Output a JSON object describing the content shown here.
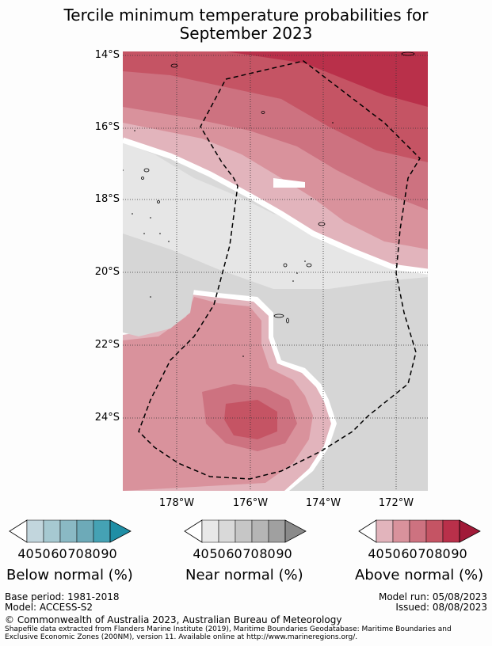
{
  "title_line1": "Tercile minimum temperature probabilities for",
  "title_line2": "September 2023",
  "lat_labels": [
    "14°S",
    "16°S",
    "18°S",
    "20°S",
    "22°S",
    "24°S"
  ],
  "lon_labels": [
    "178°W",
    "176°W",
    "174°W",
    "172°W"
  ],
  "colors": {
    "below": [
      "#ffffff",
      "#c2d6dd",
      "#a6c9d1",
      "#8ab9c4",
      "#6daab8",
      "#45a2b4",
      "#1f8ea5"
    ],
    "near": [
      "#ffffff",
      "#e8e8e8",
      "#d9d9d9",
      "#c6c6c6",
      "#b5b5b5",
      "#a0a0a0",
      "#8a8a8a"
    ],
    "above": [
      "#ffffff",
      "#e2b4bc",
      "#d9929c",
      "#cd7280",
      "#c55464",
      "#b9304a",
      "#a11a38"
    ]
  },
  "legend": {
    "ticks": [
      "40",
      "50",
      "60",
      "70",
      "80",
      "90"
    ],
    "below_label": "Below normal (%)",
    "near_label": "Near normal (%)",
    "above_label": "Above normal (%)"
  },
  "footer": {
    "base_period": "Base period: 1981-2018",
    "model": "Model: ACCESS-S2",
    "model_run": "Model run: 05/08/2023",
    "issued": "Issued: 08/08/2023",
    "copyright": "© Commonwealth of Australia 2023, Australian Bureau of Meteorology",
    "shapefile_line1": "Shapefile data extracted from Flanders Marine Institute (2019), Maritime Boundaries Geodatabase: Maritime Boundaries and",
    "shapefile_line2": "Exclusive Economic Zones (200NM), version 11. Available online at http://www.marineregions.org/."
  }
}
